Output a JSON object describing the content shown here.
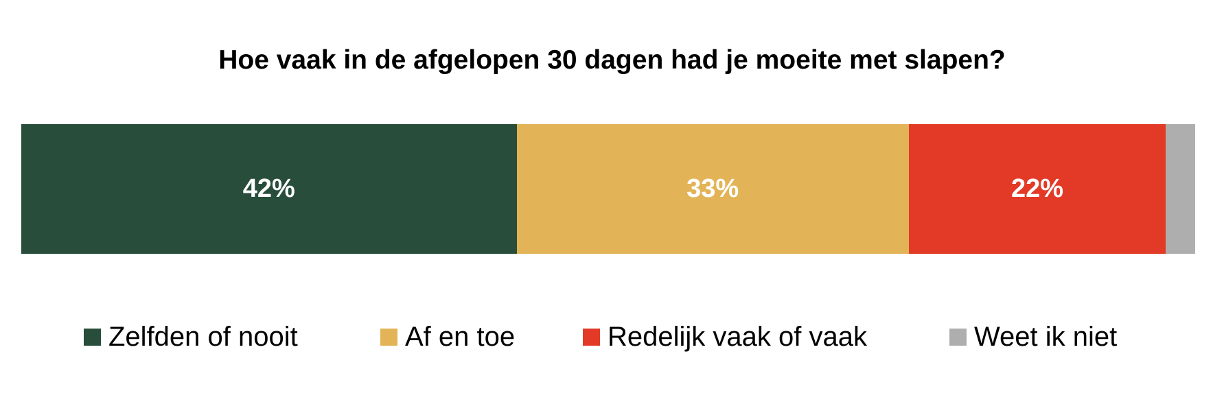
{
  "chart_data": {
    "type": "bar",
    "orientation": "horizontal-stacked-100",
    "title": "Hoe vaak in de afgelopen 30 dagen had je moeite met slapen?",
    "xlabel": "",
    "ylabel": "",
    "grid": false,
    "legend_position": "bottom",
    "categories": [
      "Zelfden of nooit",
      "Af en toe",
      "Redelijk vaak of vaak",
      "Weet ik niet"
    ],
    "values": [
      42,
      33,
      22,
      3
    ],
    "data_labels": [
      "42%",
      "33%",
      "22%",
      ""
    ],
    "colors": [
      "#284D3A",
      "#E3B457",
      "#E23A27",
      "#AEAEAE"
    ]
  },
  "segments": [
    {
      "label": "42%",
      "pct": 42.2,
      "color": "#284D3A"
    },
    {
      "label": "33%",
      "pct": 33.4,
      "color": "#E3B457"
    },
    {
      "label": "22%",
      "pct": 21.9,
      "color": "#E23A27"
    },
    {
      "label": "",
      "pct": 2.5,
      "color": "#AEAEAE"
    }
  ],
  "legend": [
    {
      "label": "Zelfden of nooit",
      "color": "#284D3A"
    },
    {
      "label": "Af en toe",
      "color": "#E3B457"
    },
    {
      "label": "Redelijk vaak of vaak",
      "color": "#E23A27"
    },
    {
      "label": "Weet ik niet",
      "color": "#AEAEAE"
    }
  ]
}
